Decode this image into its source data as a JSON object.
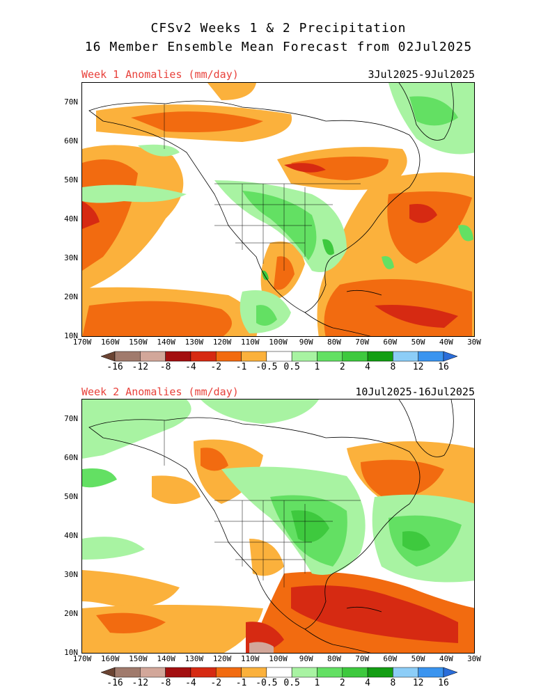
{
  "header": {
    "title": "CFSv2 Weeks 1 & 2 Precipitation",
    "subtitle": "16 Member Ensemble Mean Forecast from 02Jul2025"
  },
  "panels": [
    {
      "title": "Week 1 Anomalies (mm/day)",
      "dates": "3Jul2025-9Jul2025"
    },
    {
      "title": "Week 2 Anomalies (mm/day)",
      "dates": "10Jul2025-16Jul2025"
    }
  ],
  "axes": {
    "lat_ticks": [
      "70N",
      "60N",
      "50N",
      "40N",
      "30N",
      "20N",
      "10N"
    ],
    "lon_ticks": [
      "170W",
      "160W",
      "150W",
      "140W",
      "130W",
      "120W",
      "110W",
      "100W",
      "90W",
      "80W",
      "70W",
      "60W",
      "50W",
      "40W",
      "30W"
    ]
  },
  "colorbar": {
    "labels": [
      "-16",
      "-12",
      "-8",
      "-4",
      "-2",
      "-1",
      "-0.5",
      "0.5",
      "1",
      "2",
      "4",
      "8",
      "12",
      "16"
    ],
    "colors": [
      "#6b4433",
      "#a07a6c",
      "#d2a79a",
      "#a30f10",
      "#d62a12",
      "#f26b10",
      "#fbb13c",
      "#ffffff",
      "#a8f3a2",
      "#63e063",
      "#3ec93e",
      "#139e13",
      "#8ccdf7",
      "#3a94ef",
      "#2a6dd9"
    ]
  },
  "chart_data": {
    "type": "heatmap",
    "variable": "precipitation anomaly (mm/day)",
    "lat_range": [
      "10N",
      "75N"
    ],
    "lon_range": [
      "170W",
      "30W"
    ]
  }
}
